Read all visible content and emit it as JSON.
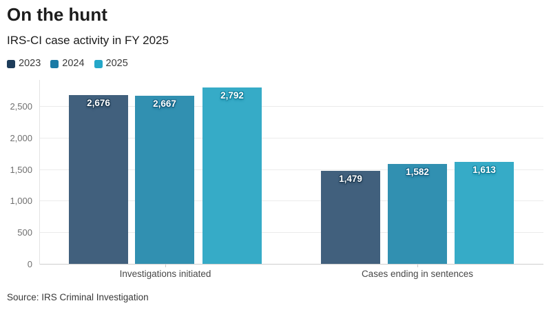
{
  "header": {
    "title": "On the hunt",
    "subtitle": "IRS-CI case activity in FY 2025"
  },
  "source": "Source: IRS Criminal Investigation",
  "chart_data": {
    "type": "bar",
    "title": "On the hunt",
    "subtitle": "IRS-CI case activity in FY 2025",
    "categories": [
      "Investigations initiated",
      "Cases ending in sentences"
    ],
    "series": [
      {
        "name": "2023",
        "values": [
          2676,
          1479
        ],
        "labels": [
          "2,676",
          "1,479"
        ],
        "legend_color": "#1d3c5a",
        "bar_color": "#41607d",
        "label_shadow": "#1b3850"
      },
      {
        "name": "2024",
        "values": [
          2667,
          1582
        ],
        "labels": [
          "2,667",
          "1,582"
        ],
        "legend_color": "#1a7aa5",
        "bar_color": "#3190b1",
        "label_shadow": "#135e80"
      },
      {
        "name": "2025",
        "values": [
          2792,
          1613
        ],
        "labels": [
          "2,792",
          "1,613"
        ],
        "legend_color": "#25a7c8",
        "bar_color": "#36abc7",
        "label_shadow": "#0f7c98"
      }
    ],
    "yticks": [
      0,
      500,
      1000,
      1500,
      2000,
      2500
    ],
    "ytick_labels": [
      "0",
      "500",
      "1,000",
      "1,500",
      "2,000",
      "2,500"
    ],
    "ylim": [
      0,
      2925
    ],
    "grid": true,
    "legend_position": "top",
    "value_labels_inside_bars": true
  }
}
